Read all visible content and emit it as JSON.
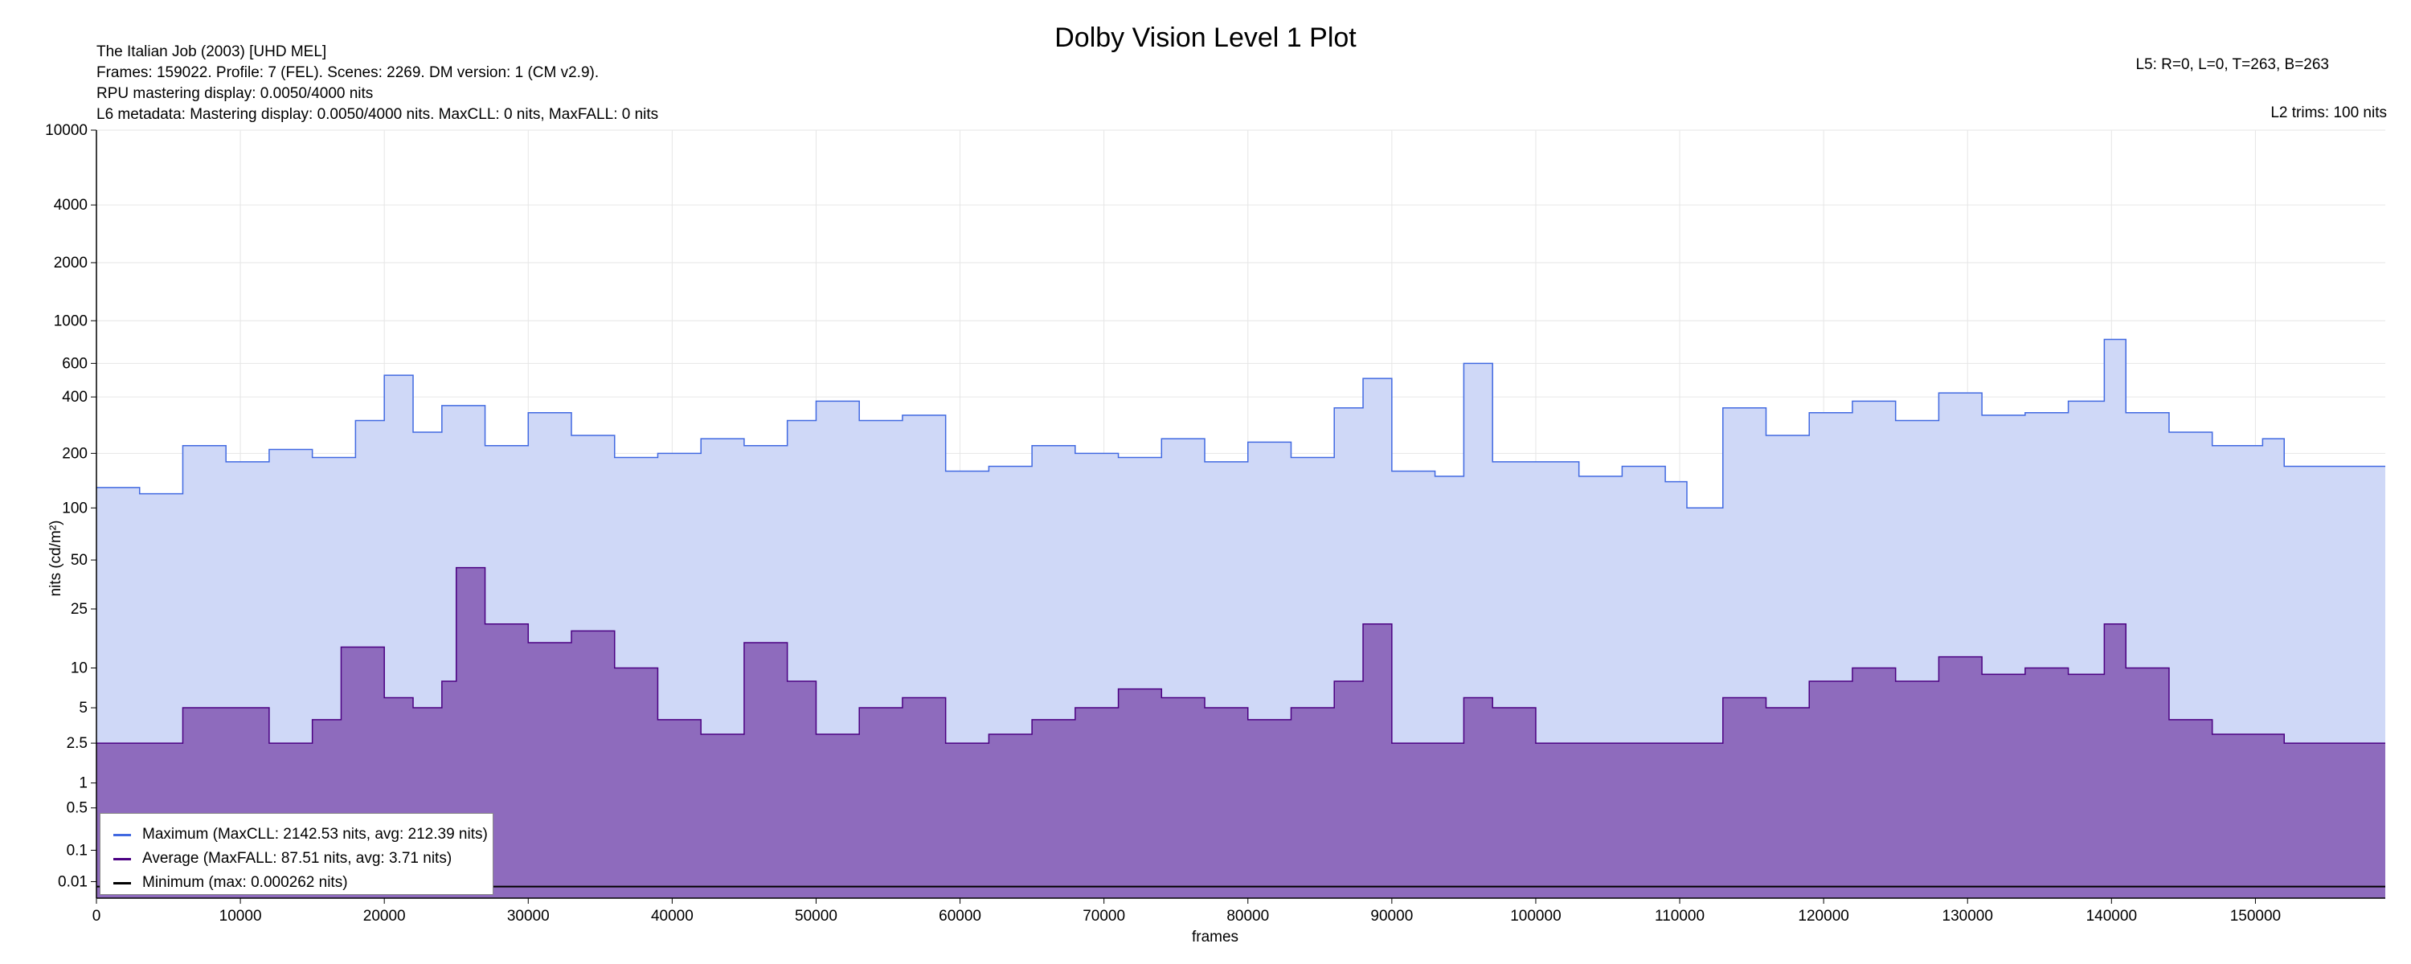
{
  "header": {
    "title": "Dolby Vision Level 1 Plot",
    "line1": "The Italian Job (2003) [UHD MEL]",
    "line2": "Frames: 159022. Profile: 7 (FEL). Scenes: 2269. DM version: 1 (CM v2.9).",
    "line3": "RPU mastering display: 0.0050/4000 nits",
    "line4": "L6 metadata: Mastering display: 0.0050/4000 nits. MaxCLL: 0 nits, MaxFALL: 0 nits",
    "l5": "L5: R=0, L=0, T=263, B=263",
    "l2": "L2 trims: 100 nits"
  },
  "legend": {
    "max": "Maximum (MaxCLL: 2142.53 nits, avg: 212.39 nits)",
    "avg": "Average (MaxFALL: 87.51 nits, avg: 3.71 nits)",
    "min": "Minimum (max: 0.000262 nits)"
  },
  "chart_data": {
    "type": "area",
    "title": "Dolby Vision Level 1 Plot",
    "xlabel": "frames",
    "ylabel": "nits (cd/m²)",
    "y_scale": "perceptual (PQ)",
    "xlim": [
      0,
      159022
    ],
    "ylim": [
      0,
      10000
    ],
    "x_ticks": [
      "0",
      "10000",
      "20000",
      "30000",
      "40000",
      "50000",
      "60000",
      "70000",
      "80000",
      "90000",
      "100000",
      "110000",
      "120000",
      "130000",
      "140000",
      "150000"
    ],
    "x_tick_values": [
      0,
      10000,
      20000,
      30000,
      40000,
      50000,
      60000,
      70000,
      80000,
      90000,
      100000,
      110000,
      120000,
      130000,
      140000,
      150000
    ],
    "y_ticks": [
      "0.01",
      "0.1",
      "0.5",
      "1",
      "2.5",
      "5",
      "10",
      "25",
      "50",
      "100",
      "200",
      "400",
      "600",
      "1000",
      "2000",
      "4000",
      "10000"
    ],
    "y_tick_values": [
      0.01,
      0.1,
      0.5,
      1,
      2.5,
      5,
      10,
      25,
      50,
      100,
      200,
      400,
      600,
      1000,
      2000,
      4000,
      10000
    ],
    "grid": true,
    "legend_position": "bottom-left",
    "colors": {
      "max_line": "#4169e1",
      "max_fill": "#cfd8f7",
      "avg_line": "#4b0082",
      "avg_fill": "#8e6bbd",
      "min_line": "#000000"
    },
    "series": [
      {
        "name": "Maximum",
        "x": [
          0,
          3000,
          6000,
          9000,
          12000,
          15000,
          18000,
          20000,
          22000,
          24000,
          25000,
          27000,
          30000,
          33000,
          36000,
          39000,
          42000,
          45000,
          48000,
          50000,
          53000,
          56000,
          59000,
          62000,
          65000,
          68000,
          71000,
          74000,
          77000,
          80000,
          83000,
          86000,
          88000,
          90000,
          93000,
          95000,
          97000,
          100000,
          103000,
          106000,
          109000,
          110500,
          113000,
          116000,
          119000,
          122000,
          125000,
          128000,
          131000,
          134000,
          137000,
          139500,
          141000,
          144000,
          147000,
          150500,
          152000,
          159022
        ],
        "values": [
          130,
          120,
          220,
          180,
          210,
          190,
          300,
          520,
          260,
          360,
          360,
          220,
          330,
          250,
          190,
          200,
          240,
          220,
          300,
          380,
          300,
          320,
          160,
          170,
          220,
          200,
          190,
          240,
          180,
          230,
          190,
          350,
          500,
          160,
          150,
          600,
          180,
          180,
          150,
          170,
          140,
          100,
          350,
          250,
          330,
          380,
          300,
          420,
          320,
          330,
          380,
          800,
          330,
          260,
          220,
          240,
          170,
          170
        ]
      },
      {
        "name": "Average",
        "x": [
          0,
          3000,
          6000,
          9000,
          12000,
          15000,
          17000,
          20000,
          22000,
          24000,
          25000,
          27000,
          30000,
          33000,
          36000,
          39000,
          42000,
          45000,
          48000,
          50000,
          53000,
          56000,
          59000,
          62000,
          65000,
          68000,
          71000,
          74000,
          77000,
          80000,
          83000,
          86000,
          88000,
          90000,
          93000,
          95000,
          97000,
          100000,
          103000,
          106000,
          109000,
          110500,
          113000,
          116000,
          119000,
          122000,
          125000,
          128000,
          131000,
          134000,
          137000,
          139500,
          141000,
          144000,
          147000,
          150500,
          152000,
          159022
        ],
        "values": [
          2.5,
          2.5,
          5,
          5,
          2.5,
          4,
          14,
          6,
          5,
          8,
          45,
          20,
          15,
          18,
          10,
          4,
          3,
          15,
          8,
          3,
          5,
          6,
          2.5,
          3,
          4,
          5,
          7,
          6,
          5,
          4,
          5,
          8,
          20,
          2.5,
          2.5,
          6,
          5,
          2.5,
          2.5,
          2.5,
          2.5,
          2.5,
          6,
          5,
          8,
          10,
          8,
          12,
          9,
          10,
          9,
          20,
          10,
          4,
          3,
          3,
          2.5,
          2.5
        ]
      },
      {
        "name": "Minimum",
        "x": [
          0,
          159022
        ],
        "values": [
          0.005,
          0.005
        ]
      }
    ]
  }
}
